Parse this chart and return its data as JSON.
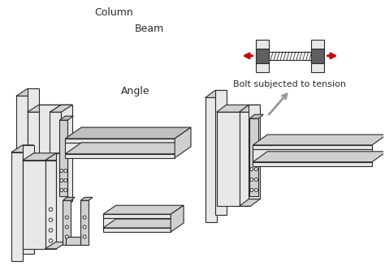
{
  "bg_color": "#ffffff",
  "line_color": "#2a2a2a",
  "gray_fill": "#c0c0c0",
  "light_gray": "#e8e8e8",
  "mid_gray": "#d0d0d0",
  "dark_gray": "#606060",
  "red_color": "#cc0000",
  "arrow_gray": "#999999",
  "label_column": "Column",
  "label_beam": "Beam",
  "label_angle": "Angle",
  "label_bolt": "Bolt subjected to tension",
  "fontsize_label": 9,
  "fontsize_bolt": 8
}
